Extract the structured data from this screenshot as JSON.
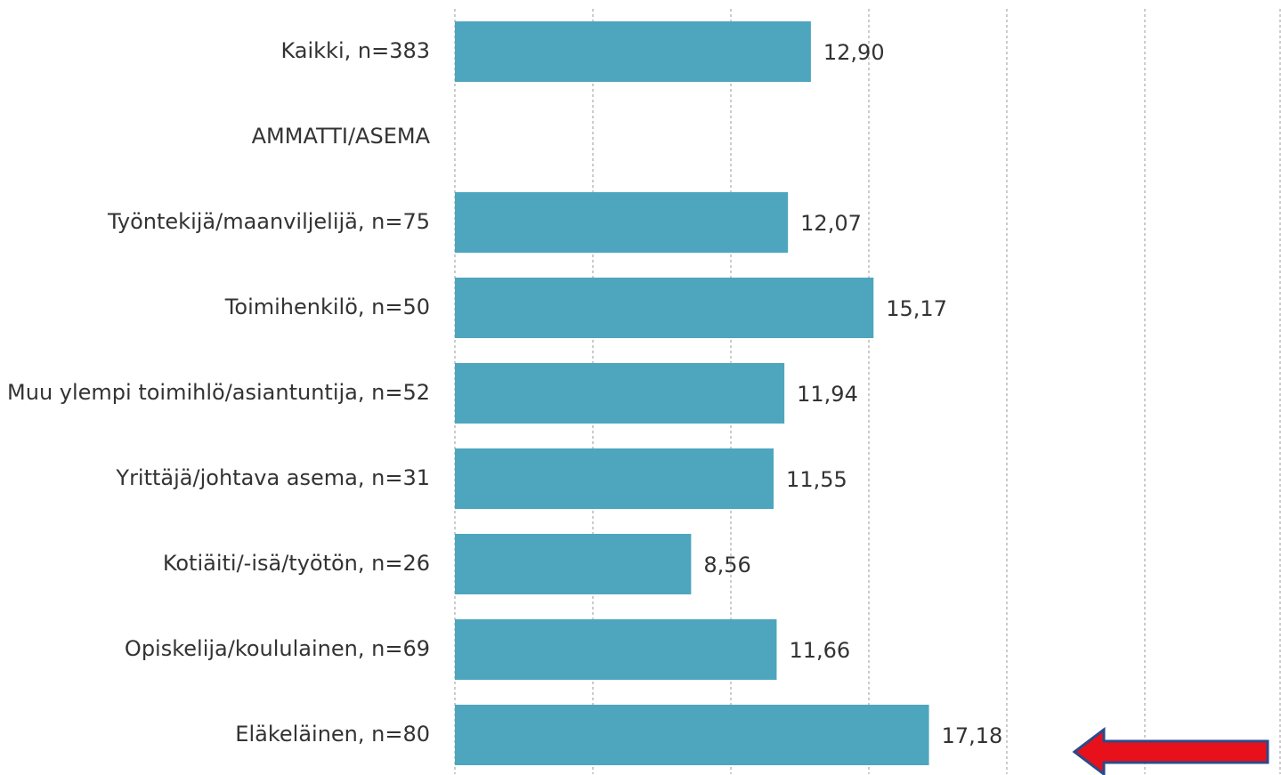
{
  "chart_data": {
    "type": "bar",
    "orientation": "horizontal",
    "categories": [
      "Kaikki, n=383",
      "AMMATTI/ASEMA",
      "Työntekijä/maanviljelijä, n=75",
      "Toimihenkilö, n=50",
      "Muu ylempi toimihlö/asiantuntija, n=52",
      "Yrittäjä/johtava asema, n=31",
      "Kotiäiti/-isä/työtön, n=26",
      "Opiskelija/koululainen, n=69",
      "Eläkeläinen, n=80"
    ],
    "values": [
      12.9,
      null,
      12.07,
      15.17,
      11.94,
      11.55,
      8.56,
      11.66,
      17.18
    ],
    "value_labels": [
      "12,90",
      null,
      "12,07",
      "15,17",
      "11,94",
      "11,55",
      "8,56",
      "11,66",
      "17,18"
    ],
    "color": "#4da6be",
    "xlim": [
      0,
      30
    ],
    "xticks": [
      0,
      5,
      10,
      15,
      20,
      25,
      30
    ],
    "grid": true
  }
}
